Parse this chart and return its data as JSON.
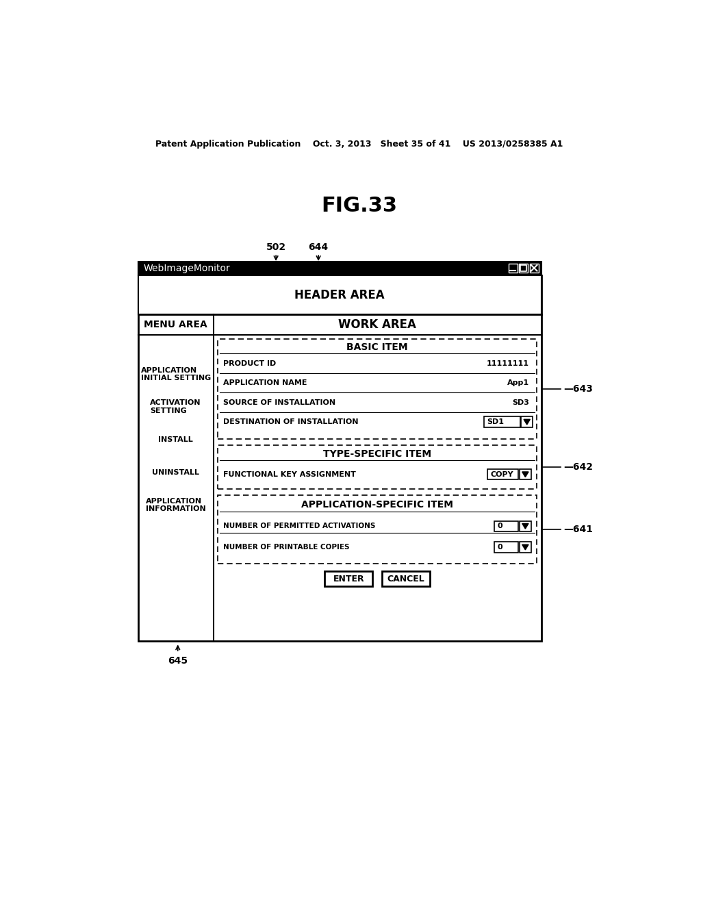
{
  "bg_color": "#ffffff",
  "header_text": "Patent Application Publication    Oct. 3, 2013   Sheet 35 of 41    US 2013/0258385 A1",
  "fig_title": "FIG.33",
  "titlebar_text": "WebImageMonitor",
  "header_area_text": "HEADER AREA",
  "menu_area_text": "MENU AREA",
  "work_area_text": "WORK AREA",
  "basic_item_title": "BASIC ITEM",
  "product_id_label": "PRODUCT ID",
  "product_id_value": "11111111",
  "app_name_label": "APPLICATION NAME",
  "app_name_value": "App1",
  "source_label": "SOURCE OF INSTALLATION",
  "source_value": "SD3",
  "dest_label": "DESTINATION OF INSTALLATION",
  "dest_value": "SD1",
  "type_specific_title": "TYPE-SPECIFIC ITEM",
  "func_key_label": "FUNCTIONAL KEY ASSIGNMENT",
  "func_key_value": "COPY",
  "app_specific_title": "APPLICATION-SPECIFIC ITEM",
  "permitted_label": "NUMBER OF PERMITTED ACTIVATIONS",
  "permitted_value": "0",
  "printable_label": "NUMBER OF PRINTABLE COPIES",
  "printable_value": "0",
  "menu_items": [
    "APPLICATION\nINITIAL SETTING",
    "ACTIVATION\nSETTING",
    "INSTALL",
    "UNINSTALL",
    "APPLICATION\nINFORMATION"
  ],
  "label_502": "502",
  "label_644": "644",
  "label_645": "645",
  "label_643": "643",
  "label_642": "642",
  "label_641": "641"
}
